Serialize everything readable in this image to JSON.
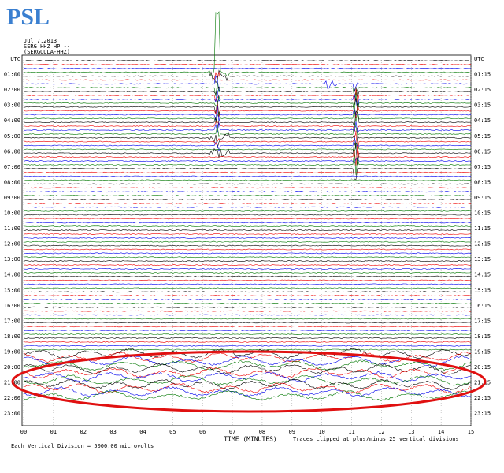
{
  "header": {
    "logo": "PSL",
    "date": "Jul 7,2013",
    "station": "SERG HHZ HP --",
    "station_name": "(SERGOULA-HHZ)"
  },
  "left_labels": [
    "UTC",
    "01:00",
    "02:00",
    "03:00",
    "04:00",
    "05:00",
    "06:00",
    "07:00",
    "08:00",
    "09:00",
    "10:00",
    "11:00",
    "12:00",
    "13:00",
    "14:00",
    "15:00",
    "16:00",
    "17:00",
    "18:00",
    "19:00",
    "20:00",
    "21:00",
    "22:00",
    "23:00"
  ],
  "right_labels": [
    "UTC",
    "01:15",
    "02:15",
    "03:15",
    "04:15",
    "05:15",
    "06:15",
    "07:15",
    "08:15",
    "09:15",
    "10:15",
    "11:15",
    "12:15",
    "13:15",
    "14:15",
    "15:15",
    "16:15",
    "17:15",
    "18:15",
    "19:15",
    "20:15",
    "21:15",
    "22:15",
    "23:15"
  ],
  "x_axis": {
    "ticks": [
      "00",
      "01",
      "02",
      "03",
      "04",
      "05",
      "06",
      "07",
      "08",
      "09",
      "10",
      "11",
      "12",
      "13",
      "14",
      "15"
    ],
    "label": "TIME (MINUTES)"
  },
  "footer": {
    "left": "Each Vertical Division = 5000.00 microvolts",
    "right": "Traces clipped at plus/minus 25 vertical divisions"
  }
}
